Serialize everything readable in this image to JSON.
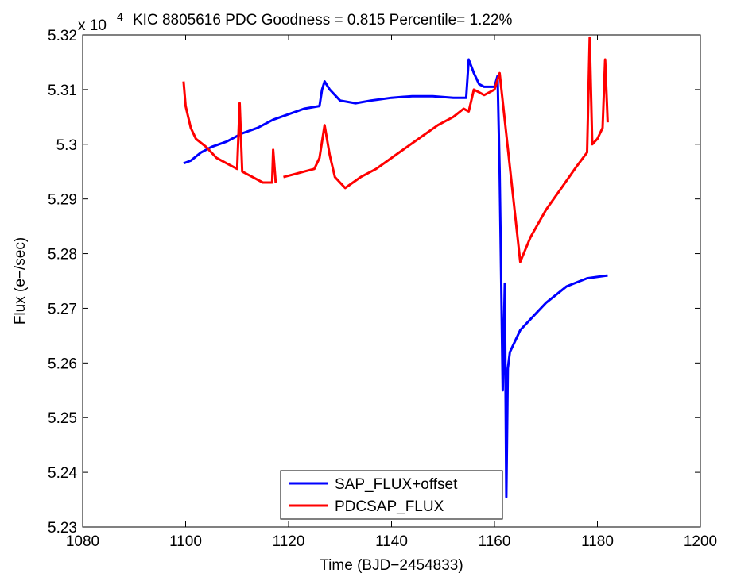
{
  "chart_data": {
    "type": "line",
    "title": "KIC 8805616 PDC Goodness = 0.815 Percentile= 1.22%",
    "xlabel": "Time (BJD−2454833)",
    "ylabel": "Flux (e−/sec)",
    "y_exponent_label": "x 10",
    "y_exponent_power": "4",
    "xlim": [
      1080,
      1200
    ],
    "ylim": [
      52300,
      53200
    ],
    "x_ticks": [
      1080,
      1100,
      1120,
      1140,
      1160,
      1180,
      1200
    ],
    "x_tick_labels": [
      "1080",
      "1100",
      "1120",
      "1140",
      "1160",
      "1180",
      "1200"
    ],
    "y_ticks": [
      52300,
      52400,
      52500,
      52600,
      52700,
      52800,
      52900,
      53000,
      53100,
      53200
    ],
    "y_tick_labels": [
      "5.23",
      "5.24",
      "5.25",
      "5.26",
      "5.27",
      "5.28",
      "5.29",
      "5.3",
      "5.31",
      "5.32"
    ],
    "grid": false,
    "legend_position": "bottom-center",
    "series": [
      {
        "name": "SAP_FLUX+offset",
        "color": "#0000ff",
        "x": [
          1099.6,
          1101,
          1103,
          1105,
          1108,
          1111,
          1114,
          1117,
          1120,
          1123,
          1126,
          1126.5,
          1127,
          1128,
          1130,
          1133,
          1136,
          1140,
          1144,
          1148,
          1152,
          1154.5,
          1155,
          1156,
          1157,
          1158,
          1160,
          1160.6,
          1161,
          1161.6,
          1162,
          1162.3,
          1162.6,
          1163,
          1164,
          1165,
          1167,
          1170,
          1174,
          1178,
          1182
        ],
        "y": [
          52965,
          52970,
          52985,
          52995,
          53005,
          53020,
          53030,
          53045,
          53055,
          53065,
          53070,
          53100,
          53115,
          53100,
          53080,
          53075,
          53080,
          53085,
          53088,
          53088,
          53085,
          53085,
          53155,
          53130,
          53110,
          53105,
          53105,
          53125,
          52950,
          52550,
          52745,
          52355,
          52590,
          52620,
          52640,
          52660,
          52680,
          52710,
          52740,
          52755,
          52760
        ]
      },
      {
        "name": "PDCSAP_FLUX",
        "color": "#ff0000",
        "x": [
          1099.6,
          1100,
          1101,
          1102,
          1104,
          1106,
          1108,
          1110,
          1110.5,
          1111,
          1113,
          1115,
          1116.8,
          1117,
          1117.5,
          1118.5,
          1119,
          1121,
          1123,
          1125,
          1126,
          1127,
          1128,
          1129,
          1131,
          1134,
          1137,
          1140,
          1143,
          1146,
          1149,
          1152,
          1154,
          1155,
          1156,
          1157,
          1158,
          1160,
          1161,
          1165,
          1167,
          1170,
          1173,
          1176,
          1178,
          1178.5,
          1179,
          1180,
          1181,
          1181.5,
          1182
        ],
        "y": [
          53115,
          53070,
          53030,
          53010,
          52995,
          52975,
          52965,
          52955,
          53075,
          52950,
          52940,
          52930,
          52930,
          52990,
          52930,
          null,
          52940,
          52945,
          52950,
          52955,
          52975,
          53035,
          52980,
          52940,
          52920,
          52940,
          52955,
          52975,
          52995,
          53015,
          53035,
          53050,
          53065,
          53060,
          53100,
          53095,
          53090,
          53100,
          53130,
          52785,
          52830,
          52880,
          52920,
          52960,
          52985,
          53195,
          53000,
          53010,
          53030,
          53155,
          53040
        ]
      }
    ]
  }
}
